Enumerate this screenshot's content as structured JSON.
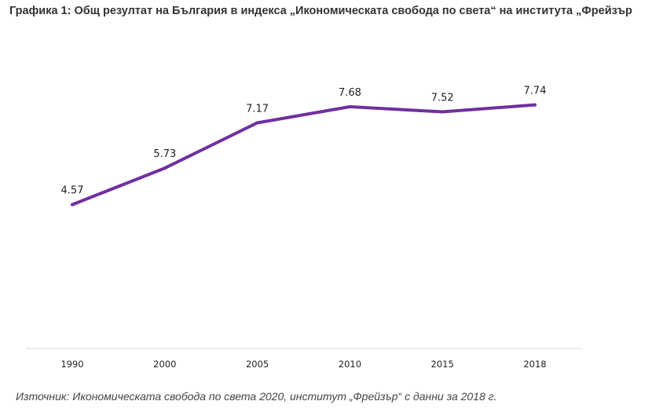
{
  "title": "Графика 1: Общ резултат на България в индекса „Икономическата свобода по света“ на института „Фрейзър",
  "source": "Източник: Икономическата свобода по света 2020, институт „Фрейзър“ с данни за 2018 г.",
  "colors": {
    "line": "#7030a0",
    "axis": "#d9d9d9",
    "text": "#222222"
  },
  "chart_data": {
    "type": "line",
    "title": "Графика 1: Общ резултат на България в индекса „Икономическата свобода по света“ на института „Фрейзър",
    "categories": [
      "1990",
      "2000",
      "2005",
      "2010",
      "2015",
      "2018"
    ],
    "series": [
      {
        "name": "Общ резултат",
        "values": [
          4.57,
          5.73,
          7.17,
          7.68,
          7.52,
          7.74
        ],
        "labels": [
          "4.57",
          "5.73",
          "7.17",
          "7.68",
          "7.52",
          "7.74"
        ]
      }
    ],
    "xlabel": "",
    "ylabel": "",
    "ylim": [
      0,
      9
    ],
    "grid": false,
    "legend": "none"
  }
}
